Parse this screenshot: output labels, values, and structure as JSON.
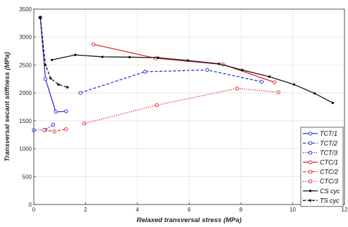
{
  "chart_data": {
    "type": "line",
    "title": "",
    "xlabel": "Relaxed transversal stress (MPa)",
    "ylabel": "Transversal secant stiffness (MPa)",
    "xlim": [
      0,
      12
    ],
    "ylim": [
      0,
      3500
    ],
    "xticks": [
      "0",
      "2",
      "4",
      "6",
      "8",
      "10",
      "12"
    ],
    "yticks": [
      "0",
      "500",
      "1000",
      "1500",
      "2000",
      "2500",
      "3000",
      "3500"
    ],
    "grid": true,
    "legend_position": "bottom-right",
    "series": [
      {
        "name": "TCT/1",
        "color": "#2e2ed8",
        "style": "solid",
        "marker": "circle",
        "x": [
          0.25,
          0.45,
          0.85,
          1.25
        ],
        "y": [
          3350,
          2250,
          1660,
          1670
        ]
      },
      {
        "name": "TCT/2",
        "color": "#2e2ed8",
        "style": "dashed",
        "marker": "circle",
        "x": [
          1.8,
          4.3,
          6.7,
          8.8
        ],
        "y": [
          2000,
          2380,
          2410,
          2200
        ]
      },
      {
        "name": "TCT/3",
        "color": "#2e2ed8",
        "style": "dotted",
        "marker": "circle",
        "x": [
          0.0,
          0.45,
          0.75
        ],
        "y": [
          1330,
          1340,
          1430
        ]
      },
      {
        "name": "CTC/1",
        "color": "#e8262a",
        "style": "solid",
        "marker": "circle",
        "x": [
          2.3,
          4.7,
          7.3,
          9.3
        ],
        "y": [
          2870,
          2620,
          2510,
          2190
        ]
      },
      {
        "name": "CTC/2",
        "color": "#e8262a",
        "style": "dashed",
        "marker": "circle",
        "x": [
          0.4,
          0.8,
          1.25
        ],
        "y": [
          1330,
          1310,
          1350
        ]
      },
      {
        "name": "CTC/3",
        "color": "#e8262a",
        "style": "dotted",
        "marker": "circle",
        "x": [
          1.95,
          4.75,
          7.85,
          9.45
        ],
        "y": [
          1450,
          1780,
          2080,
          2010
        ]
      },
      {
        "name": "CS cyc",
        "color": "#111111",
        "style": "solid",
        "marker": "dot",
        "x": [
          0.7,
          1.6,
          2.65,
          3.7,
          4.8,
          5.95,
          7.15,
          8.05,
          9.1,
          10.05,
          10.85,
          11.55
        ],
        "y": [
          2590,
          2680,
          2645,
          2640,
          2630,
          2580,
          2520,
          2410,
          2290,
          2150,
          1990,
          1820
        ]
      },
      {
        "name": "TS cyc",
        "color": "#111111",
        "style": "dashed",
        "marker": "dot",
        "x": [
          0.25,
          0.45,
          0.65,
          0.95,
          1.3
        ],
        "y": [
          3350,
          2500,
          2260,
          2150,
          2100
        ]
      }
    ]
  }
}
